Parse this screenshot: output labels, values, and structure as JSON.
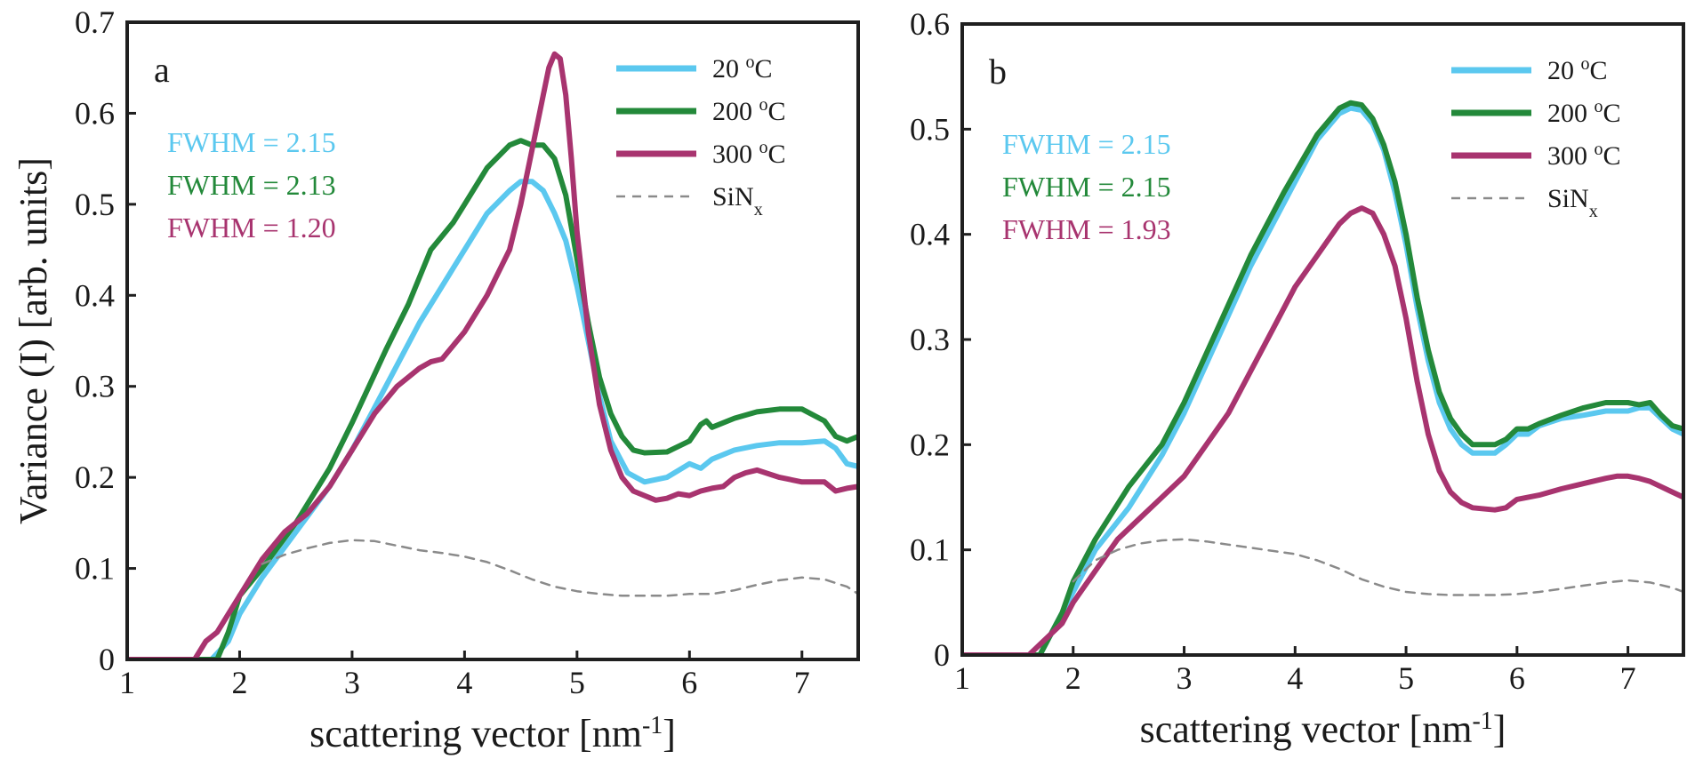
{
  "chart_data": [
    {
      "type": "line",
      "panel_label": "a",
      "xlabel": "scattering vector [nm",
      "xlabel_sup": "-1",
      "xlabel_end": "]",
      "ylabel": "Variance (I) [arb. units]",
      "xlim": [
        1,
        7.5
      ],
      "ylim": [
        0,
        0.7
      ],
      "xticks": [
        1,
        2,
        3,
        4,
        5,
        6,
        7
      ],
      "yticks": [
        0,
        0.1,
        0.2,
        0.3,
        0.4,
        0.5,
        0.6,
        0.7
      ],
      "xtick_labels": [
        "1",
        "2",
        "3",
        "4",
        "5",
        "6",
        "7"
      ],
      "ytick_labels": [
        "0",
        "0.1",
        "0.2",
        "0.3",
        "0.4",
        "0.5",
        "0.6",
        "0.7"
      ],
      "grid": false,
      "legend_position": "top-right",
      "series": [
        {
          "name": "20 oC",
          "label_main": "20 ",
          "label_sup": "o",
          "label_end": "C",
          "color": "#5bc8ef",
          "style": "solid",
          "x": [
            1.0,
            1.6,
            1.75,
            1.9,
            2.0,
            2.2,
            2.5,
            2.8,
            3.0,
            3.3,
            3.6,
            3.9,
            4.2,
            4.4,
            4.5,
            4.6,
            4.7,
            4.8,
            4.9,
            5.0,
            5.1,
            5.2,
            5.3,
            5.45,
            5.6,
            5.8,
            6.0,
            6.1,
            6.2,
            6.4,
            6.6,
            6.8,
            7.0,
            7.2,
            7.3,
            7.4,
            7.5
          ],
          "y": [
            0.0,
            0.0,
            0.0,
            0.02,
            0.05,
            0.09,
            0.14,
            0.19,
            0.23,
            0.3,
            0.37,
            0.43,
            0.49,
            0.515,
            0.525,
            0.525,
            0.515,
            0.49,
            0.46,
            0.41,
            0.35,
            0.29,
            0.24,
            0.205,
            0.195,
            0.2,
            0.215,
            0.21,
            0.22,
            0.23,
            0.235,
            0.238,
            0.238,
            0.24,
            0.232,
            0.215,
            0.212
          ]
        },
        {
          "name": "200 oC",
          "label_main": "200 ",
          "label_sup": "o",
          "label_end": "C",
          "color": "#23893a",
          "style": "solid",
          "x": [
            1.0,
            1.7,
            1.8,
            1.9,
            2.0,
            2.2,
            2.5,
            2.8,
            3.0,
            3.3,
            3.5,
            3.7,
            3.8,
            3.9,
            4.0,
            4.2,
            4.4,
            4.5,
            4.6,
            4.7,
            4.8,
            4.9,
            5.0,
            5.1,
            5.2,
            5.3,
            5.4,
            5.5,
            5.6,
            5.8,
            6.0,
            6.1,
            6.15,
            6.2,
            6.4,
            6.6,
            6.8,
            7.0,
            7.2,
            7.3,
            7.4,
            7.5
          ],
          "y": [
            0.0,
            0.0,
            0.0,
            0.03,
            0.07,
            0.1,
            0.15,
            0.21,
            0.26,
            0.34,
            0.39,
            0.45,
            0.465,
            0.48,
            0.5,
            0.54,
            0.565,
            0.57,
            0.565,
            0.565,
            0.55,
            0.51,
            0.44,
            0.37,
            0.31,
            0.27,
            0.245,
            0.23,
            0.227,
            0.228,
            0.24,
            0.258,
            0.262,
            0.255,
            0.265,
            0.272,
            0.275,
            0.275,
            0.262,
            0.245,
            0.24,
            0.245
          ]
        },
        {
          "name": "300 oC",
          "label_main": "300 ",
          "label_sup": "o",
          "label_end": "C",
          "color": "#a8346f",
          "style": "solid",
          "x": [
            1.0,
            1.6,
            1.7,
            1.8,
            1.9,
            2.0,
            2.2,
            2.4,
            2.6,
            2.8,
            3.0,
            3.2,
            3.4,
            3.6,
            3.7,
            3.8,
            4.0,
            4.2,
            4.4,
            4.5,
            4.6,
            4.7,
            4.75,
            4.8,
            4.85,
            4.9,
            4.95,
            5.0,
            5.1,
            5.2,
            5.3,
            5.4,
            5.5,
            5.6,
            5.7,
            5.8,
            5.9,
            6.0,
            6.1,
            6.2,
            6.3,
            6.4,
            6.5,
            6.6,
            6.8,
            7.0,
            7.2,
            7.3,
            7.4,
            7.5
          ],
          "y": [
            0.0,
            0.0,
            0.02,
            0.03,
            0.05,
            0.07,
            0.11,
            0.14,
            0.16,
            0.19,
            0.23,
            0.27,
            0.3,
            0.32,
            0.327,
            0.33,
            0.36,
            0.4,
            0.45,
            0.5,
            0.56,
            0.62,
            0.65,
            0.665,
            0.66,
            0.62,
            0.55,
            0.47,
            0.36,
            0.28,
            0.23,
            0.2,
            0.185,
            0.18,
            0.175,
            0.177,
            0.182,
            0.18,
            0.185,
            0.188,
            0.19,
            0.2,
            0.205,
            0.208,
            0.2,
            0.195,
            0.195,
            0.185,
            0.188,
            0.19
          ]
        },
        {
          "name": "SiNx",
          "label_main": "SiN",
          "label_sub": "x",
          "color": "#8a8a8a",
          "style": "dashed",
          "x": [
            2.2,
            2.4,
            2.6,
            2.8,
            3.0,
            3.2,
            3.4,
            3.6,
            3.8,
            4.0,
            4.2,
            4.4,
            4.6,
            4.8,
            5.0,
            5.2,
            5.4,
            5.6,
            5.8,
            6.0,
            6.2,
            6.4,
            6.6,
            6.8,
            7.0,
            7.2,
            7.4,
            7.5
          ],
          "y": [
            0.105,
            0.115,
            0.122,
            0.128,
            0.131,
            0.13,
            0.125,
            0.12,
            0.117,
            0.113,
            0.107,
            0.098,
            0.088,
            0.08,
            0.075,
            0.072,
            0.07,
            0.07,
            0.07,
            0.072,
            0.072,
            0.076,
            0.082,
            0.087,
            0.09,
            0.088,
            0.08,
            0.072
          ]
        }
      ],
      "annotations": [
        {
          "text": "FWHM = 2.15",
          "color": "#5bc8ef"
        },
        {
          "text": "FWHM = 2.13",
          "color": "#23893a"
        },
        {
          "text": "FWHM = 1.20",
          "color": "#a8346f"
        }
      ]
    },
    {
      "type": "line",
      "panel_label": "b",
      "xlabel": "scattering vector [nm",
      "xlabel_sup": "-1",
      "xlabel_end": "]",
      "ylabel": "",
      "xlim": [
        1,
        7.5
      ],
      "ylim": [
        0,
        0.6
      ],
      "xticks": [
        1,
        2,
        3,
        4,
        5,
        6,
        7
      ],
      "yticks": [
        0,
        0.1,
        0.2,
        0.3,
        0.4,
        0.5,
        0.6
      ],
      "xtick_labels": [
        "1",
        "2",
        "3",
        "4",
        "5",
        "6",
        "7"
      ],
      "ytick_labels": [
        "0",
        "0.1",
        "0.2",
        "0.3",
        "0.4",
        "0.5",
        "0.6"
      ],
      "grid": false,
      "legend_position": "top-right",
      "series": [
        {
          "name": "20 oC",
          "label_main": "20 ",
          "label_sup": "o",
          "label_end": "C",
          "color": "#5bc8ef",
          "style": "solid",
          "x": [
            1.0,
            1.6,
            1.7,
            1.8,
            1.9,
            2.0,
            2.2,
            2.5,
            2.8,
            3.0,
            3.3,
            3.6,
            3.9,
            4.2,
            4.4,
            4.5,
            4.6,
            4.7,
            4.8,
            4.9,
            5.0,
            5.1,
            5.2,
            5.3,
            5.4,
            5.5,
            5.6,
            5.8,
            5.9,
            6.0,
            6.1,
            6.2,
            6.4,
            6.6,
            6.8,
            7.0,
            7.1,
            7.2,
            7.3,
            7.4,
            7.5
          ],
          "y": [
            0.0,
            0.0,
            0.0,
            0.02,
            0.04,
            0.06,
            0.1,
            0.14,
            0.19,
            0.23,
            0.3,
            0.37,
            0.43,
            0.49,
            0.515,
            0.52,
            0.518,
            0.505,
            0.48,
            0.44,
            0.39,
            0.33,
            0.28,
            0.24,
            0.215,
            0.2,
            0.192,
            0.192,
            0.2,
            0.21,
            0.21,
            0.218,
            0.225,
            0.228,
            0.232,
            0.232,
            0.235,
            0.235,
            0.225,
            0.215,
            0.21
          ]
        },
        {
          "name": "200 oC",
          "label_main": "200 ",
          "label_sup": "o",
          "label_end": "C",
          "color": "#23893a",
          "style": "solid",
          "x": [
            1.0,
            1.6,
            1.7,
            1.8,
            1.9,
            2.0,
            2.2,
            2.5,
            2.8,
            3.0,
            3.3,
            3.6,
            3.9,
            4.2,
            4.4,
            4.5,
            4.6,
            4.7,
            4.8,
            4.9,
            5.0,
            5.1,
            5.2,
            5.3,
            5.4,
            5.5,
            5.6,
            5.8,
            5.9,
            6.0,
            6.1,
            6.2,
            6.4,
            6.6,
            6.8,
            7.0,
            7.1,
            7.2,
            7.3,
            7.4,
            7.5
          ],
          "y": [
            0.0,
            0.0,
            0.0,
            0.02,
            0.04,
            0.07,
            0.11,
            0.16,
            0.2,
            0.24,
            0.31,
            0.38,
            0.44,
            0.495,
            0.52,
            0.525,
            0.523,
            0.51,
            0.485,
            0.45,
            0.4,
            0.34,
            0.29,
            0.25,
            0.225,
            0.21,
            0.2,
            0.2,
            0.205,
            0.215,
            0.215,
            0.22,
            0.228,
            0.235,
            0.24,
            0.24,
            0.238,
            0.24,
            0.228,
            0.218,
            0.215
          ]
        },
        {
          "name": "300 oC",
          "label_main": "300 ",
          "label_sup": "o",
          "label_end": "C",
          "color": "#a8346f",
          "style": "solid",
          "x": [
            1.0,
            1.6,
            1.7,
            1.8,
            1.9,
            2.0,
            2.2,
            2.4,
            2.6,
            2.8,
            3.0,
            3.2,
            3.4,
            3.6,
            3.8,
            4.0,
            4.2,
            4.4,
            4.5,
            4.6,
            4.7,
            4.8,
            4.9,
            5.0,
            5.1,
            5.2,
            5.3,
            5.4,
            5.5,
            5.6,
            5.8,
            5.9,
            6.0,
            6.2,
            6.4,
            6.6,
            6.8,
            6.9,
            7.0,
            7.1,
            7.2,
            7.3,
            7.4,
            7.5
          ],
          "y": [
            0.0,
            0.0,
            0.01,
            0.02,
            0.03,
            0.05,
            0.08,
            0.11,
            0.13,
            0.15,
            0.17,
            0.2,
            0.23,
            0.27,
            0.31,
            0.35,
            0.38,
            0.41,
            0.42,
            0.425,
            0.42,
            0.4,
            0.37,
            0.32,
            0.26,
            0.21,
            0.175,
            0.155,
            0.145,
            0.14,
            0.138,
            0.14,
            0.148,
            0.152,
            0.158,
            0.163,
            0.168,
            0.17,
            0.17,
            0.168,
            0.165,
            0.16,
            0.155,
            0.15
          ]
        },
        {
          "name": "SiNx",
          "label_main": "SiN",
          "label_sub": "x",
          "color": "#8a8a8a",
          "style": "dashed",
          "x": [
            2.0,
            2.2,
            2.4,
            2.6,
            2.8,
            3.0,
            3.2,
            3.4,
            3.6,
            3.8,
            4.0,
            4.2,
            4.4,
            4.6,
            4.8,
            5.0,
            5.2,
            5.4,
            5.6,
            5.8,
            6.0,
            6.2,
            6.4,
            6.6,
            6.8,
            7.0,
            7.2,
            7.4,
            7.5
          ],
          "y": [
            0.07,
            0.09,
            0.1,
            0.106,
            0.109,
            0.11,
            0.108,
            0.105,
            0.102,
            0.099,
            0.096,
            0.09,
            0.082,
            0.072,
            0.065,
            0.06,
            0.058,
            0.057,
            0.057,
            0.057,
            0.058,
            0.06,
            0.063,
            0.066,
            0.069,
            0.071,
            0.069,
            0.064,
            0.06
          ]
        }
      ],
      "annotations": [
        {
          "text": "FWHM = 2.15",
          "color": "#5bc8ef"
        },
        {
          "text": "FWHM = 2.15",
          "color": "#23893a"
        },
        {
          "text": "FWHM = 1.93",
          "color": "#a8346f"
        }
      ]
    }
  ]
}
